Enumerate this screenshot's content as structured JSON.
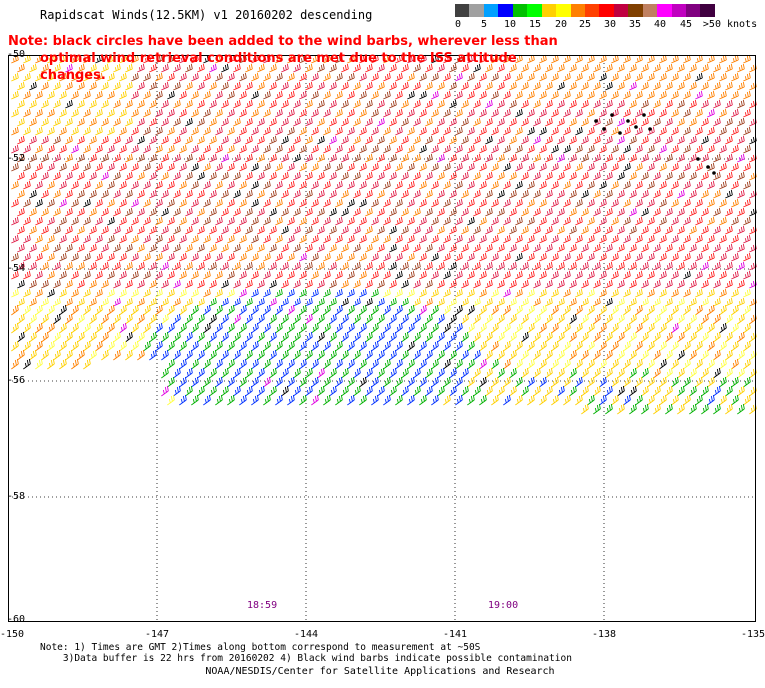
{
  "title": "Rapidscat Winds(12.5KM) v1 20160202 descending",
  "note": {
    "line1": "Note: black circles have been added to the wind barbs, wherever less than",
    "line2": "optimal wind retrieval conditions are met due to the ISS attitude changes."
  },
  "colorbar": {
    "colors": [
      "#404040",
      "#a0a0a0",
      "#00a0ff",
      "#0000ff",
      "#00c000",
      "#00ff00",
      "#ffd000",
      "#ffff00",
      "#ff8000",
      "#ff4000",
      "#ff0000",
      "#c00040",
      "#804000",
      "#c08060",
      "#ff00ff",
      "#c000c0",
      "#800080",
      "#400040"
    ],
    "labels": [
      "0",
      "5",
      "10",
      "15",
      "20",
      "25",
      "30",
      "35",
      "40",
      "45",
      ">50 knots"
    ]
  },
  "axes": {
    "lon_ticks": [
      "-150",
      "-147",
      "-144",
      "-141",
      "-138",
      "-135"
    ],
    "lat_ticks": [
      "-50",
      "-52",
      "-54",
      "-56",
      "-58",
      "-60"
    ]
  },
  "pass_times": [
    "18:59",
    "19:00"
  ],
  "footnote": "Note: 1) Times are GMT 2)Times along bottom correspond to measurement at ~50S\n    3)Data buffer is 22 hrs from 20160202 4) Black wind barbs indicate possible contamination",
  "credit": "NOAA/NESDIS/Center for Satellite Applications and Research"
}
